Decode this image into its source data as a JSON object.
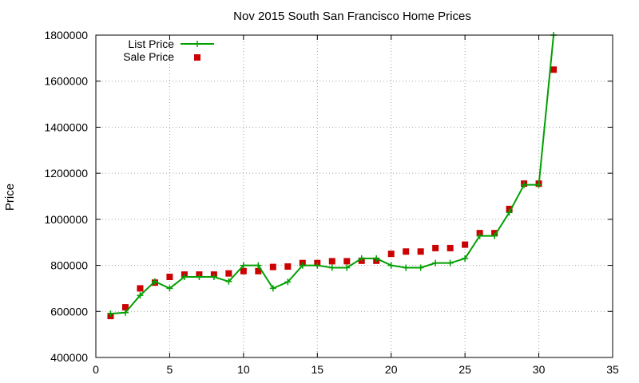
{
  "chart_data": {
    "type": "line",
    "title": "Nov 2015 South San Francisco Home Prices",
    "xlabel": "",
    "ylabel": "Price",
    "xlim": [
      0,
      35
    ],
    "ylim": [
      400000,
      1800000
    ],
    "xticks": [
      0,
      5,
      10,
      15,
      20,
      25,
      30,
      35
    ],
    "yticks": [
      400000,
      600000,
      800000,
      1000000,
      1200000,
      1400000,
      1600000,
      1800000
    ],
    "grid": true,
    "legend_position": "top-left",
    "series": [
      {
        "name": "List Price",
        "style": "line-with-plus-markers",
        "color": "#00a000",
        "x": [
          1,
          2,
          3,
          4,
          5,
          6,
          7,
          8,
          9,
          10,
          11,
          12,
          13,
          14,
          15,
          16,
          17,
          18,
          19,
          20,
          21,
          22,
          23,
          24,
          25,
          26,
          27,
          28,
          29,
          30,
          31
        ],
        "values": [
          590000,
          595000,
          670000,
          730000,
          700000,
          750000,
          750000,
          750000,
          730000,
          800000,
          800000,
          700000,
          728000,
          800000,
          800000,
          790000,
          790000,
          830000,
          830000,
          800000,
          790000,
          790000,
          810000,
          810000,
          830000,
          928000,
          928000,
          1030000,
          1150000,
          1150000,
          1800000
        ]
      },
      {
        "name": "Sale Price",
        "style": "square-markers",
        "color": "#cc0000",
        "x": [
          1,
          2,
          3,
          4,
          5,
          6,
          7,
          8,
          9,
          10,
          11,
          12,
          13,
          14,
          15,
          16,
          17,
          18,
          19,
          20,
          21,
          22,
          23,
          24,
          25,
          26,
          27,
          28,
          29,
          30,
          31
        ],
        "values": [
          580000,
          618000,
          700000,
          725000,
          750000,
          760000,
          760000,
          760000,
          765000,
          775000,
          775000,
          793000,
          795000,
          810000,
          810000,
          818000,
          818000,
          820000,
          820000,
          850000,
          860000,
          860000,
          875000,
          875000,
          890000,
          940000,
          940000,
          1045000,
          1155000,
          1155000,
          1650000
        ]
      }
    ]
  }
}
